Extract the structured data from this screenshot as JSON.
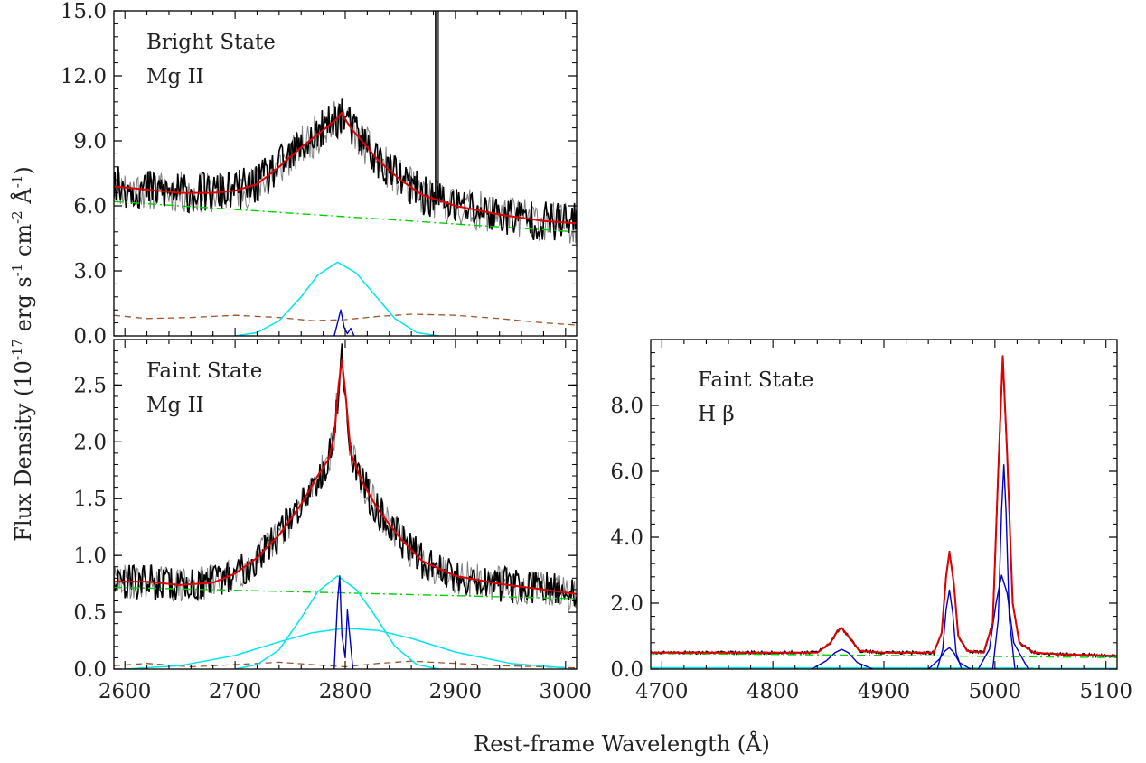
{
  "figure": {
    "ylabel_main": "Flux Density (10",
    "ylabel_exp1": "-17",
    "ylabel_mid1": " erg s",
    "ylabel_exp2": "-1",
    "ylabel_mid2": " cm",
    "ylabel_exp3": "-2",
    "ylabel_mid3": " Å",
    "ylabel_exp4": "-1",
    "ylabel_end": ")",
    "xlabel": "Rest-frame Wavelength (Å)"
  },
  "colors": {
    "data_black": "#000000",
    "data_gray": "#808080",
    "total_fit": "#e00000",
    "power_law": "#00d000",
    "fe_template": "#a0522d",
    "broad": "#00e5ee",
    "narrow": "#0000cc"
  },
  "chart_data": [
    {
      "type": "line",
      "id": "bright",
      "label_line1": "Bright State",
      "label_line2": "Mg II",
      "xlim": [
        2590,
        3010
      ],
      "ylim": [
        0,
        15
      ],
      "yticks": [
        "0.0",
        "3.0",
        "6.0",
        "9.0",
        "12.0",
        "15.0"
      ],
      "ytick_values": [
        0,
        3,
        6,
        9,
        12,
        15
      ],
      "xticks": [],
      "series": [
        {
          "role": "total_fit",
          "x": [
            2590,
            2620,
            2650,
            2680,
            2700,
            2720,
            2740,
            2760,
            2775,
            2785,
            2792,
            2797,
            2800,
            2805,
            2815,
            2830,
            2850,
            2870,
            2900,
            2940,
            2980,
            3010
          ],
          "y": [
            6.9,
            6.75,
            6.6,
            6.6,
            6.7,
            7.0,
            7.8,
            8.7,
            9.3,
            9.7,
            10.0,
            10.3,
            10.0,
            9.6,
            9.0,
            8.1,
            7.2,
            6.5,
            6.0,
            5.6,
            5.3,
            5.2
          ]
        },
        {
          "role": "power_law",
          "x": [
            2590,
            3010
          ],
          "y": [
            6.2,
            4.8
          ]
        },
        {
          "role": "fe_template",
          "x": [
            2590,
            2620,
            2660,
            2700,
            2740,
            2770,
            2800,
            2830,
            2860,
            2900,
            2940,
            2980,
            3010
          ],
          "y": [
            0.95,
            0.8,
            0.85,
            0.95,
            0.85,
            0.7,
            0.75,
            0.9,
            1.0,
            0.95,
            0.8,
            0.6,
            0.5
          ]
        },
        {
          "role": "broad",
          "x": [
            2700,
            2720,
            2740,
            2760,
            2775,
            2793,
            2810,
            2825,
            2845,
            2865,
            2885
          ],
          "y": [
            0.0,
            0.15,
            0.7,
            1.8,
            2.8,
            3.4,
            2.9,
            2.0,
            0.8,
            0.15,
            0.0
          ]
        },
        {
          "role": "narrow",
          "x": [
            2790,
            2793,
            2796,
            2799,
            2802,
            2805,
            2808
          ],
          "y": [
            0.0,
            0.6,
            1.2,
            0.4,
            0.1,
            0.35,
            0.0
          ]
        }
      ],
      "spike": {
        "x": 2882,
        "y": [
          6.2,
          15
        ]
      }
    },
    {
      "type": "line",
      "id": "faint_mg",
      "label_line1": "Faint State",
      "label_line2": "Mg II",
      "xlim": [
        2590,
        3010
      ],
      "ylim": [
        0,
        2.9
      ],
      "yticks": [
        "0.0",
        "0.5",
        "1.0",
        "1.5",
        "2.0",
        "2.5"
      ],
      "ytick_values": [
        0,
        0.5,
        1.0,
        1.5,
        2.0,
        2.5
      ],
      "xticks": [
        "2600",
        "2700",
        "2800",
        "2900",
        "3000"
      ],
      "xtick_values": [
        2600,
        2700,
        2800,
        2900,
        3000
      ],
      "series": [
        {
          "role": "total_fit",
          "x": [
            2590,
            2620,
            2650,
            2680,
            2700,
            2720,
            2740,
            2760,
            2775,
            2785,
            2790,
            2794,
            2797,
            2800,
            2805,
            2815,
            2830,
            2850,
            2870,
            2900,
            2940,
            2980,
            3010
          ],
          "y": [
            0.77,
            0.77,
            0.74,
            0.76,
            0.84,
            0.98,
            1.18,
            1.45,
            1.7,
            1.85,
            2.05,
            2.5,
            2.72,
            2.45,
            1.9,
            1.65,
            1.4,
            1.15,
            0.95,
            0.82,
            0.75,
            0.7,
            0.66
          ]
        },
        {
          "role": "power_law",
          "x": [
            2590,
            3010
          ],
          "y": [
            0.72,
            0.62
          ]
        },
        {
          "role": "fe_template",
          "x": [
            2590,
            2620,
            2660,
            2700,
            2740,
            2770,
            2800,
            2830,
            2860,
            2900,
            2940,
            2980,
            3010
          ],
          "y": [
            0.03,
            0.05,
            0.02,
            0.04,
            0.06,
            0.04,
            0.02,
            0.05,
            0.07,
            0.05,
            0.03,
            0.02,
            0.01
          ]
        },
        {
          "role": "broad",
          "x": [
            2700,
            2720,
            2740,
            2760,
            2775,
            2793,
            2810,
            2825,
            2845,
            2865,
            2885
          ],
          "y": [
            0.0,
            0.04,
            0.17,
            0.45,
            0.68,
            0.82,
            0.7,
            0.5,
            0.2,
            0.04,
            0.0
          ]
        },
        {
          "role": "broad",
          "x": [
            2600,
            2650,
            2700,
            2740,
            2770,
            2800,
            2830,
            2860,
            2900,
            2950,
            3000
          ],
          "y": [
            0.0,
            0.03,
            0.12,
            0.24,
            0.32,
            0.36,
            0.34,
            0.27,
            0.15,
            0.05,
            0.01
          ]
        },
        {
          "role": "narrow",
          "x": [
            2790,
            2793,
            2795,
            2797,
            2800,
            2802,
            2804,
            2807
          ],
          "y": [
            0.0,
            0.6,
            0.82,
            0.3,
            0.1,
            0.52,
            0.3,
            0.0
          ]
        }
      ]
    },
    {
      "type": "line",
      "id": "faint_hb",
      "label_line1": "Faint State",
      "label_line2": "H β",
      "xlim": [
        4690,
        5110
      ],
      "ylim": [
        0,
        10
      ],
      "yticks": [
        "0.0",
        "2.0",
        "4.0",
        "6.0",
        "8.0"
      ],
      "ytick_values": [
        0,
        2,
        4,
        6,
        8
      ],
      "xticks": [
        "4700",
        "4800",
        "4900",
        "5000",
        "5100"
      ],
      "xtick_values": [
        4700,
        4800,
        4900,
        5000,
        5100
      ],
      "series": [
        {
          "role": "total_fit",
          "x": [
            4690,
            4800,
            4840,
            4852,
            4858,
            4862,
            4868,
            4878,
            4900,
            4945,
            4952,
            4956,
            4959,
            4963,
            4967,
            4975,
            4990,
            4998,
            5003,
            5007,
            5011,
            5016,
            5022,
            5035,
            5060,
            5110
          ],
          "y": [
            0.5,
            0.5,
            0.5,
            0.8,
            1.15,
            1.25,
            1.0,
            0.55,
            0.5,
            0.5,
            1.1,
            2.8,
            3.55,
            2.6,
            1.0,
            0.55,
            0.5,
            1.4,
            6.0,
            9.5,
            6.5,
            2.0,
            0.8,
            0.5,
            0.45,
            0.4
          ]
        },
        {
          "role": "power_law",
          "x": [
            4690,
            5110
          ],
          "y": [
            0.48,
            0.35
          ]
        },
        {
          "role": "broad",
          "x": [
            4690,
            5110
          ],
          "y": [
            0.04,
            0.03
          ]
        },
        {
          "role": "narrow",
          "x": [
            4835,
            4848,
            4856,
            4862,
            4868,
            4876,
            4890
          ],
          "y": [
            0.0,
            0.25,
            0.5,
            0.6,
            0.5,
            0.2,
            0.0
          ]
        },
        {
          "role": "narrow",
          "x": [
            4940,
            4950,
            4955,
            4959,
            4963,
            4968,
            4978
          ],
          "y": [
            0.0,
            0.3,
            0.55,
            0.65,
            0.5,
            0.2,
            0.0
          ]
        },
        {
          "role": "narrow",
          "x": [
            4948,
            4953,
            4956,
            4959,
            4962,
            4965,
            4970
          ],
          "y": [
            0.0,
            0.6,
            1.8,
            2.4,
            1.7,
            0.5,
            0.0
          ]
        },
        {
          "role": "narrow",
          "x": [
            4985,
            4995,
            5001,
            5006,
            5011,
            5017,
            5030
          ],
          "y": [
            0.0,
            0.6,
            2.0,
            2.85,
            2.3,
            0.8,
            0.0
          ]
        },
        {
          "role": "narrow",
          "x": [
            4998,
            5003,
            5006,
            5008,
            5010,
            5013,
            5018
          ],
          "y": [
            0.0,
            1.5,
            4.8,
            6.2,
            4.8,
            1.5,
            0.0
          ]
        }
      ]
    }
  ]
}
